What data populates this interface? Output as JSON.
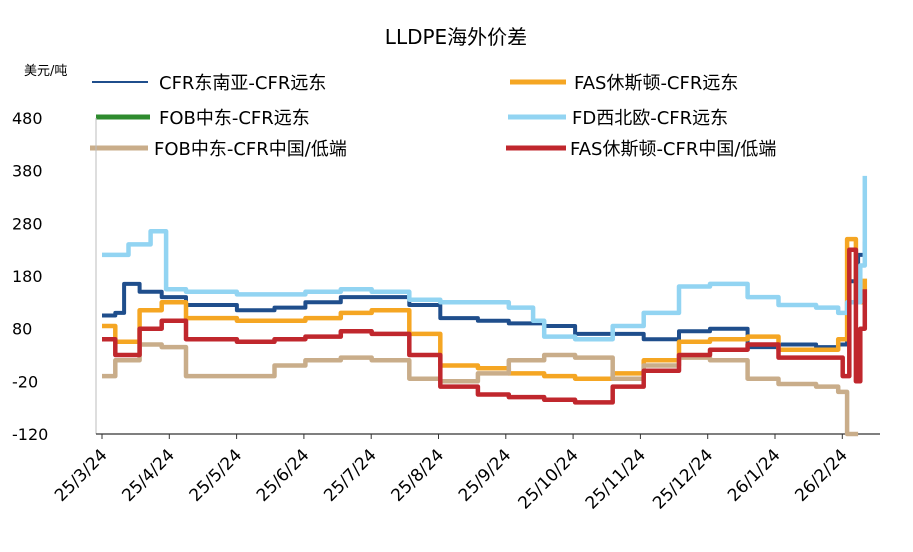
{
  "chart_data": {
    "type": "line",
    "title": "LLDPE海外价差",
    "unit_label": "美元/吨",
    "ylim": [
      -120,
      480
    ],
    "y_ticks": [
      "480",
      "380",
      "280",
      "180",
      "80",
      "-20",
      "-120"
    ],
    "x_ticks": [
      "25/3/24",
      "25/4/24",
      "25/5/24",
      "25/6/24",
      "25/7/24",
      "25/8/24",
      "25/9/24",
      "25/10/24",
      "25/11/24",
      "25/12/24",
      "26/1/24",
      "26/2/24"
    ],
    "grid": false,
    "legend_position": "top",
    "series": [
      {
        "name": "CFR东南亚-CFR远东",
        "color": "#1f4e8c",
        "points": [
          [
            "25/3/24",
            105
          ],
          [
            "25/3/30",
            110
          ],
          [
            "25/4/3",
            165
          ],
          [
            "25/4/10",
            150
          ],
          [
            "25/4/20",
            140
          ],
          [
            "25/5/1",
            125
          ],
          [
            "25/5/24",
            115
          ],
          [
            "25/6/10",
            120
          ],
          [
            "25/6/24",
            130
          ],
          [
            "25/7/10",
            140
          ],
          [
            "25/7/24",
            140
          ],
          [
            "25/8/10",
            125
          ],
          [
            "25/8/24",
            100
          ],
          [
            "25/9/10",
            95
          ],
          [
            "25/9/24",
            90
          ],
          [
            "25/10/10",
            85
          ],
          [
            "25/10/24",
            70
          ],
          [
            "25/11/10",
            70
          ],
          [
            "25/11/24",
            60
          ],
          [
            "25/12/10",
            75
          ],
          [
            "25/12/24",
            80
          ],
          [
            "26/1/10",
            45
          ],
          [
            "26/1/24",
            50
          ],
          [
            "26/2/10",
            45
          ],
          [
            "26/2/20",
            50
          ],
          [
            "26/2/24",
            170
          ],
          [
            "26/3/1",
            220
          ],
          [
            "26/3/4",
            245
          ]
        ]
      },
      {
        "name": "FAS休斯顿-CFR远东",
        "color": "#f5a623",
        "points": [
          [
            "25/3/24",
            85
          ],
          [
            "25/3/30",
            55
          ],
          [
            "25/4/10",
            115
          ],
          [
            "25/4/20",
            130
          ],
          [
            "25/5/1",
            100
          ],
          [
            "25/5/24",
            95
          ],
          [
            "25/6/10",
            95
          ],
          [
            "25/6/24",
            100
          ],
          [
            "25/7/10",
            110
          ],
          [
            "25/7/24",
            115
          ],
          [
            "25/8/10",
            70
          ],
          [
            "25/8/24",
            10
          ],
          [
            "25/9/10",
            5
          ],
          [
            "25/9/24",
            -5
          ],
          [
            "25/10/10",
            -10
          ],
          [
            "25/10/24",
            -15
          ],
          [
            "25/11/10",
            -5
          ],
          [
            "25/11/24",
            20
          ],
          [
            "25/12/10",
            55
          ],
          [
            "25/12/24",
            60
          ],
          [
            "26/1/10",
            65
          ],
          [
            "26/1/24",
            40
          ],
          [
            "26/2/10",
            40
          ],
          [
            "26/2/20",
            60
          ],
          [
            "26/2/24",
            250
          ],
          [
            "26/2/28",
            130
          ],
          [
            "26/3/4",
            175
          ]
        ]
      },
      {
        "name": "FOB中东-CFR远东",
        "color": "#2e8b2e",
        "points": []
      },
      {
        "name": "FD西北欧-CFR远东",
        "color": "#92d4f2",
        "points": [
          [
            "25/3/24",
            220
          ],
          [
            "25/4/5",
            240
          ],
          [
            "25/4/15",
            265
          ],
          [
            "25/4/22",
            155
          ],
          [
            "25/5/1",
            150
          ],
          [
            "25/5/24",
            145
          ],
          [
            "25/6/10",
            145
          ],
          [
            "25/6/24",
            150
          ],
          [
            "25/7/10",
            155
          ],
          [
            "25/7/24",
            150
          ],
          [
            "25/8/10",
            135
          ],
          [
            "25/8/24",
            130
          ],
          [
            "25/9/10",
            130
          ],
          [
            "25/9/24",
            120
          ],
          [
            "25/10/5",
            95
          ],
          [
            "25/10/10",
            65
          ],
          [
            "25/10/24",
            60
          ],
          [
            "25/11/10",
            85
          ],
          [
            "25/11/24",
            110
          ],
          [
            "25/12/10",
            160
          ],
          [
            "25/12/24",
            165
          ],
          [
            "26/1/10",
            140
          ],
          [
            "26/1/24",
            125
          ],
          [
            "26/2/10",
            120
          ],
          [
            "26/2/20",
            110
          ],
          [
            "26/2/24",
            130
          ],
          [
            "26/3/2",
            200
          ],
          [
            "26/3/4",
            370
          ]
        ]
      },
      {
        "name": "FOB中东-CFR中国/低端",
        "color": "#c9ad8a",
        "points": [
          [
            "25/3/24",
            -10
          ],
          [
            "25/3/30",
            20
          ],
          [
            "25/4/10",
            50
          ],
          [
            "25/4/20",
            45
          ],
          [
            "25/5/1",
            -10
          ],
          [
            "25/5/24",
            -10
          ],
          [
            "25/6/10",
            10
          ],
          [
            "25/6/24",
            20
          ],
          [
            "25/7/10",
            25
          ],
          [
            "25/7/24",
            20
          ],
          [
            "25/8/10",
            -15
          ],
          [
            "25/8/24",
            -20
          ],
          [
            "25/9/10",
            -5
          ],
          [
            "25/9/24",
            20
          ],
          [
            "25/10/10",
            30
          ],
          [
            "25/10/24",
            25
          ],
          [
            "25/11/10",
            -15
          ],
          [
            "25/11/24",
            10
          ],
          [
            "25/12/10",
            25
          ],
          [
            "25/12/24",
            20
          ],
          [
            "26/1/10",
            -15
          ],
          [
            "26/1/24",
            -25
          ],
          [
            "26/2/10",
            -30
          ],
          [
            "26/2/20",
            -40
          ],
          [
            "26/2/24",
            -120
          ],
          [
            "26/2/27",
            -120
          ],
          [
            "26/3/1",
            -120
          ]
        ]
      },
      {
        "name": "FAS休斯顿-CFR中国/低端",
        "color": "#c0272d",
        "points": [
          [
            "25/3/24",
            60
          ],
          [
            "25/3/30",
            30
          ],
          [
            "25/4/10",
            80
          ],
          [
            "25/4/20",
            95
          ],
          [
            "25/5/1",
            60
          ],
          [
            "25/5/24",
            55
          ],
          [
            "25/6/10",
            60
          ],
          [
            "25/6/24",
            65
          ],
          [
            "25/7/10",
            75
          ],
          [
            "25/7/24",
            70
          ],
          [
            "25/8/10",
            30
          ],
          [
            "25/8/24",
            -30
          ],
          [
            "25/9/10",
            -45
          ],
          [
            "25/9/24",
            -50
          ],
          [
            "25/10/10",
            -55
          ],
          [
            "25/10/24",
            -60
          ],
          [
            "25/11/10",
            -30
          ],
          [
            "25/11/24",
            0
          ],
          [
            "25/12/10",
            30
          ],
          [
            "25/12/24",
            40
          ],
          [
            "26/1/10",
            50
          ],
          [
            "26/1/24",
            25
          ],
          [
            "26/2/10",
            25
          ],
          [
            "26/2/18",
            25
          ],
          [
            "26/2/22",
            -10
          ],
          [
            "26/2/25",
            230
          ],
          [
            "26/2/28",
            -20
          ],
          [
            "26/3/2",
            80
          ],
          [
            "26/3/4",
            155
          ]
        ]
      }
    ]
  }
}
